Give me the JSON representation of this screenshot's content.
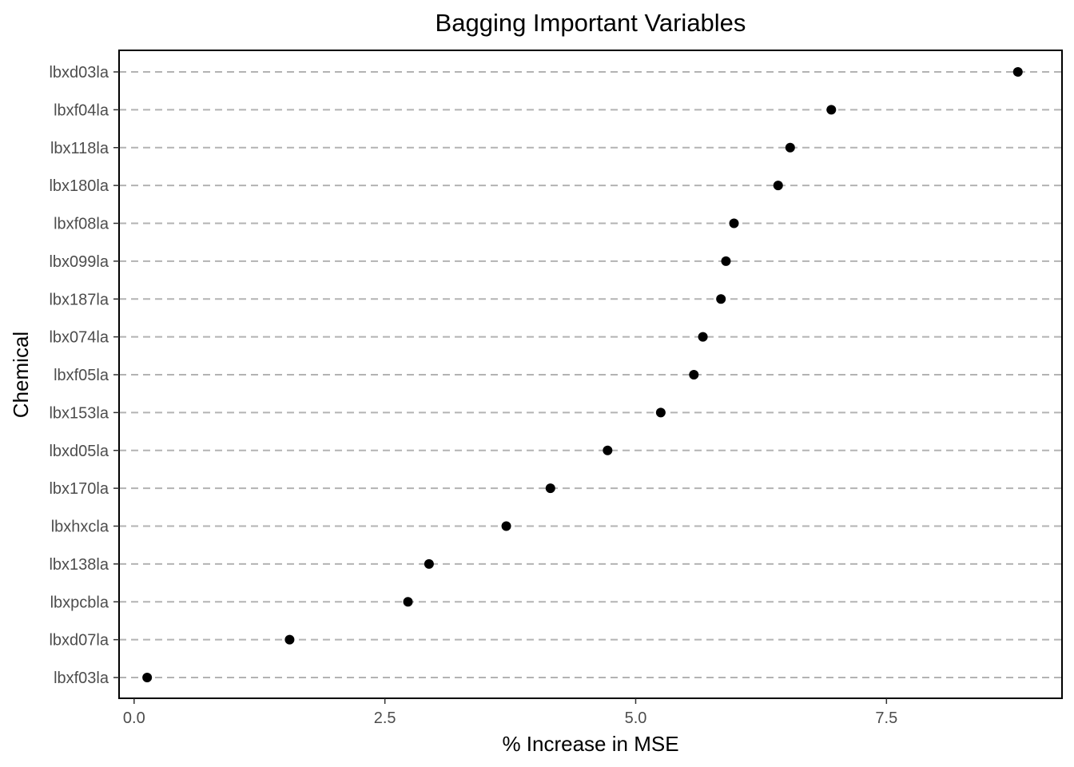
{
  "chart_data": {
    "type": "scatter",
    "title": "Bagging Important Variables",
    "xlabel": "% Increase in MSE",
    "ylabel": "Chemical",
    "xlim": [
      -0.15,
      9.25
    ],
    "x_ticks": [
      0.0,
      2.5,
      5.0,
      7.5
    ],
    "x_tick_labels": [
      "0.0",
      "2.5",
      "5.0",
      "7.5"
    ],
    "categories": [
      "lbxd03la",
      "lbxf04la",
      "lbx118la",
      "lbx180la",
      "lbxf08la",
      "lbx099la",
      "lbx187la",
      "lbx074la",
      "lbxf05la",
      "lbx153la",
      "lbxd05la",
      "lbx170la",
      "lbxhxcla",
      "lbx138la",
      "lbxpcbla",
      "lbxd07la",
      "lbxf03la"
    ],
    "values": [
      8.81,
      6.95,
      6.54,
      6.42,
      5.98,
      5.9,
      5.85,
      5.67,
      5.58,
      5.25,
      4.72,
      4.15,
      3.71,
      2.94,
      2.73,
      1.55,
      0.13
    ],
    "gridlines": "dashed horizontal at each category",
    "colors": {
      "point": "#000000",
      "grid": "#b3b3b3",
      "panel_border": "#000000",
      "tick_text": "#4d4d4d"
    }
  }
}
